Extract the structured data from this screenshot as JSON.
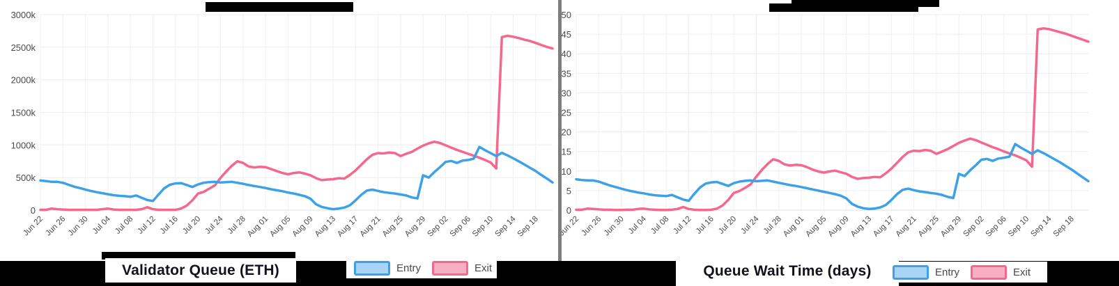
{
  "page": {
    "background": "#ffffff",
    "band_color": "#000000",
    "divider_color": "#7e7e7e"
  },
  "dates": [
    "Jun 22",
    "Jun 23",
    "Jun 24",
    "Jun 25",
    "Jun 26",
    "Jun 27",
    "Jun 28",
    "Jun 29",
    "Jun 30",
    "Jul 01",
    "Jul 02",
    "Jul 03",
    "Jul 04",
    "Jul 05",
    "Jul 06",
    "Jul 07",
    "Jul 08",
    "Jul 09",
    "Jul 10",
    "Jul 11",
    "Jul 12",
    "Jul 13",
    "Jul 14",
    "Jul 15",
    "Jul 16",
    "Jul 17",
    "Jul 18",
    "Jul 19",
    "Jul 20",
    "Jul 21",
    "Jul 22",
    "Jul 23",
    "Jul 24",
    "Jul 25",
    "Jul 26",
    "Jul 27",
    "Jul 28",
    "Jul 29",
    "Jul 30",
    "Jul 31",
    "Aug 01",
    "Aug 02",
    "Aug 03",
    "Aug 04",
    "Aug 05",
    "Aug 06",
    "Aug 07",
    "Aug 08",
    "Aug 09",
    "Aug 10",
    "Aug 11",
    "Aug 12",
    "Aug 13",
    "Aug 14",
    "Aug 15",
    "Aug 16",
    "Aug 17",
    "Aug 18",
    "Aug 19",
    "Aug 20",
    "Aug 21",
    "Aug 22",
    "Aug 23",
    "Aug 24",
    "Aug 25",
    "Aug 26",
    "Aug 27",
    "Aug 28",
    "Aug 29",
    "Aug 30",
    "Aug 31",
    "Sep 01",
    "Sep 02",
    "Sep 03",
    "Sep 04",
    "Sep 05",
    "Sep 06",
    "Sep 07",
    "Sep 08",
    "Sep 09",
    "Sep 10",
    "Sep 11",
    "Sep 12",
    "Sep 13",
    "Sep 14",
    "Sep 15",
    "Sep 16",
    "Sep 17",
    "Sep 18",
    "Sep 19",
    "Sep 20",
    "Sep 21"
  ],
  "chart_data": [
    {
      "type": "line",
      "title": "Validator Queue (ETH)",
      "x_tick_labels": [
        "Jun 22",
        "Jun 26",
        "Jun 30",
        "Jul 04",
        "Jul 08",
        "Jul 12",
        "Jul 16",
        "Jul 20",
        "Jul 24",
        "Jul 28",
        "Aug 01",
        "Aug 05",
        "Aug 09",
        "Aug 13",
        "Aug 17",
        "Aug 21",
        "Aug 25",
        "Aug 29",
        "Sep 02",
        "Sep 06",
        "Sep 10",
        "Sep 14",
        "Sep 18"
      ],
      "x_step_days": 1,
      "ylim": [
        0,
        3000
      ],
      "y_ticks": [
        0,
        500,
        1000,
        1500,
        2000,
        2500,
        3000
      ],
      "y_tick_labels": [
        "0",
        "500k",
        "1000k",
        "1500k",
        "2000k",
        "2500k",
        "3000k"
      ],
      "unit": "thousand ETH",
      "grid": true,
      "legend_position": "bottom",
      "series": [
        {
          "name": "Entry",
          "color": "#3da1e8",
          "legend_fill": "#a8d4f6",
          "values": [
            455,
            445,
            435,
            435,
            420,
            390,
            360,
            340,
            315,
            295,
            275,
            260,
            245,
            230,
            220,
            215,
            205,
            225,
            190,
            155,
            140,
            240,
            335,
            390,
            410,
            415,
            385,
            355,
            395,
            420,
            430,
            435,
            425,
            430,
            435,
            420,
            405,
            385,
            370,
            355,
            340,
            320,
            305,
            290,
            270,
            255,
            235,
            215,
            175,
            90,
            50,
            30,
            15,
            25,
            40,
            75,
            150,
            235,
            300,
            315,
            295,
            275,
            265,
            255,
            240,
            225,
            195,
            180,
            535,
            500,
            585,
            660,
            740,
            755,
            725,
            760,
            770,
            790,
            970,
            920,
            875,
            830,
            880,
            840,
            795,
            750,
            700,
            650,
            600,
            540,
            485,
            425
          ]
        },
        {
          "name": "Exit",
          "color": "#f5688c",
          "legend_fill": "#f8afc4",
          "values": [
            5,
            5,
            25,
            15,
            10,
            5,
            5,
            5,
            5,
            5,
            5,
            15,
            25,
            10,
            5,
            5,
            5,
            5,
            15,
            45,
            15,
            5,
            5,
            5,
            5,
            25,
            70,
            150,
            255,
            280,
            330,
            380,
            495,
            590,
            680,
            750,
            725,
            670,
            655,
            665,
            660,
            630,
            600,
            570,
            550,
            570,
            580,
            560,
            535,
            490,
            460,
            470,
            475,
            490,
            485,
            540,
            610,
            695,
            780,
            850,
            875,
            870,
            885,
            875,
            830,
            865,
            895,
            945,
            990,
            1025,
            1050,
            1030,
            995,
            960,
            925,
            895,
            865,
            835,
            805,
            770,
            730,
            640,
            2655,
            2675,
            2660,
            2640,
            2615,
            2595,
            2565,
            2535,
            2505,
            2480
          ]
        }
      ]
    },
    {
      "type": "line",
      "title": "Queue Wait Time (days)",
      "x_tick_labels": [
        "Jun 22",
        "Jun 26",
        "Jun 30",
        "Jul 04",
        "Jul 08",
        "Jul 12",
        "Jul 16",
        "Jul 20",
        "Jul 24",
        "Jul 28",
        "Aug 01",
        "Aug 05",
        "Aug 09",
        "Aug 13",
        "Aug 17",
        "Aug 21",
        "Aug 25",
        "Aug 29",
        "Sep 02",
        "Sep 06",
        "Sep 10",
        "Sep 14",
        "Sep 18"
      ],
      "x_step_days": 1,
      "ylim": [
        0,
        50
      ],
      "y_ticks": [
        0,
        5,
        10,
        15,
        20,
        25,
        30,
        35,
        40,
        45,
        50
      ],
      "y_tick_labels": [
        "0",
        "5",
        "10",
        "15",
        "20",
        "25",
        "30",
        "35",
        "40",
        "45",
        "50"
      ],
      "unit": "days",
      "grid": true,
      "legend_position": "bottom",
      "series": [
        {
          "name": "Entry",
          "color": "#3da1e8",
          "legend_fill": "#a8d4f6",
          "values": [
            7.9,
            7.7,
            7.6,
            7.6,
            7.3,
            6.8,
            6.3,
            5.9,
            5.5,
            5.1,
            4.8,
            4.5,
            4.3,
            4.0,
            3.8,
            3.7,
            3.6,
            3.9,
            3.3,
            2.7,
            2.4,
            4.2,
            5.8,
            6.8,
            7.1,
            7.2,
            6.7,
            6.2,
            6.9,
            7.3,
            7.5,
            7.6,
            7.4,
            7.5,
            7.6,
            7.3,
            7.0,
            6.7,
            6.4,
            6.2,
            5.9,
            5.6,
            5.3,
            5.0,
            4.7,
            4.4,
            4.1,
            3.7,
            3.0,
            1.6,
            0.9,
            0.5,
            0.3,
            0.4,
            0.7,
            1.3,
            2.6,
            4.1,
            5.2,
            5.5,
            5.1,
            4.8,
            4.6,
            4.4,
            4.2,
            3.9,
            3.4,
            3.1,
            9.3,
            8.7,
            10.2,
            11.5,
            12.9,
            13.1,
            12.6,
            13.2,
            13.4,
            13.7,
            16.9,
            16.0,
            15.2,
            14.4,
            15.3,
            14.6,
            13.8,
            13.0,
            12.2,
            11.3,
            10.4,
            9.4,
            8.4,
            7.4
          ]
        },
        {
          "name": "Exit",
          "color": "#f5688c",
          "legend_fill": "#f8afc4",
          "values": [
            0.1,
            0.1,
            0.4,
            0.3,
            0.2,
            0.1,
            0.1,
            0.05,
            0.05,
            0.1,
            0.1,
            0.3,
            0.4,
            0.2,
            0.1,
            0.05,
            0.05,
            0.1,
            0.3,
            0.8,
            0.3,
            0.1,
            0.05,
            0.05,
            0.1,
            0.4,
            1.2,
            2.6,
            4.4,
            4.9,
            5.7,
            6.6,
            8.6,
            10.3,
            11.8,
            13.0,
            12.6,
            11.7,
            11.4,
            11.6,
            11.5,
            11.0,
            10.4,
            9.9,
            9.6,
            9.9,
            10.1,
            9.7,
            9.3,
            8.5,
            8.0,
            8.2,
            8.3,
            8.5,
            8.4,
            9.4,
            10.6,
            12.1,
            13.6,
            14.8,
            15.2,
            15.1,
            15.4,
            15.2,
            14.4,
            15.0,
            15.6,
            16.4,
            17.2,
            17.8,
            18.3,
            17.9,
            17.3,
            16.7,
            16.1,
            15.6,
            15.0,
            14.5,
            14.0,
            13.4,
            12.7,
            11.1,
            46.2,
            46.5,
            46.3,
            45.9,
            45.5,
            45.1,
            44.6,
            44.1,
            43.6,
            43.1
          ]
        }
      ]
    }
  ]
}
